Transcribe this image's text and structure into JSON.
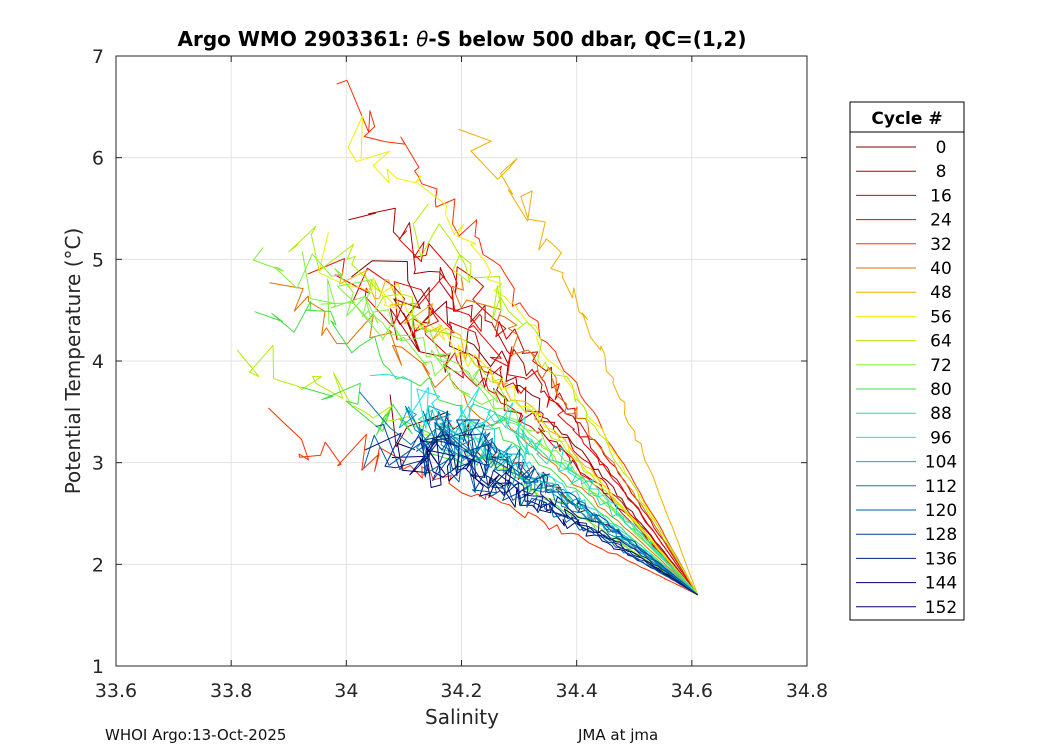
{
  "chart_data": {
    "type": "line",
    "title_prefix": "Argo WMO 2903361: ",
    "title_theta": "θ",
    "title_suffix": "-S below 500 dbar,  QC=(1,2)",
    "xlabel": "Salinity",
    "ylabel": "Potential Temperature (°C)",
    "xlim": [
      33.6,
      34.8
    ],
    "ylim": [
      1,
      7
    ],
    "xticks": [
      33.6,
      33.8,
      34.0,
      34.2,
      34.4,
      34.6,
      34.8
    ],
    "xtick_labels": [
      "33.6",
      "33.8",
      "34",
      "34.2",
      "34.4",
      "34.6",
      "34.8"
    ],
    "yticks": [
      1,
      2,
      3,
      4,
      5,
      6,
      7
    ],
    "ytick_labels": [
      "1",
      "2",
      "3",
      "4",
      "5",
      "6",
      "7"
    ],
    "grid": true,
    "legend": {
      "title": "Cycle #",
      "location": "outside-right",
      "entries": [
        {
          "label": "0",
          "color": "#800000"
        },
        {
          "label": "8",
          "color": "#b00000"
        },
        {
          "label": "16",
          "color": "#d80000"
        },
        {
          "label": "24",
          "color": "#f00000"
        },
        {
          "label": "32",
          "color": "#ff3000"
        },
        {
          "label": "40",
          "color": "#e07000"
        },
        {
          "label": "48",
          "color": "#f0b000"
        },
        {
          "label": "56",
          "color": "#f0f000"
        },
        {
          "label": "64",
          "color": "#b0f000"
        },
        {
          "label": "72",
          "color": "#80f040"
        },
        {
          "label": "80",
          "color": "#40e040"
        },
        {
          "label": "88",
          "color": "#20e0a0"
        },
        {
          "label": "96",
          "color": "#20e0e0"
        },
        {
          "label": "104",
          "color": "#00b0d0"
        },
        {
          "label": "112",
          "color": "#0080b0"
        },
        {
          "label": "120",
          "color": "#0060a0"
        },
        {
          "label": "128",
          "color": "#0040a0"
        },
        {
          "label": "136",
          "color": "#002080"
        },
        {
          "label": "144",
          "color": "#000070"
        },
        {
          "label": "152",
          "color": "#000060"
        }
      ]
    },
    "series_model": {
      "description": "theta-S profiles converging to a common deep point",
      "deep_end": {
        "S": 34.61,
        "T": 1.7
      },
      "color_groups": [
        {
          "name": "cycles 0-24",
          "colors": [
            "#800000",
            "#b00000",
            "#d80000",
            "#f00000"
          ],
          "shallow_T_range": [
            3.3,
            5.6
          ],
          "shallow_S_range": [
            33.93,
            34.22
          ],
          "count": 8
        },
        {
          "name": "cycles 32-56",
          "colors": [
            "#ff3000",
            "#e07000",
            "#f0b000",
            "#f0f000"
          ],
          "shallow_T_range": [
            3.3,
            6.8
          ],
          "shallow_S_range": [
            33.85,
            34.25
          ],
          "count": 8
        },
        {
          "name": "cycles 64-80",
          "colors": [
            "#b0f000",
            "#80f040",
            "#40e040"
          ],
          "shallow_T_range": [
            3.4,
            5.3
          ],
          "shallow_S_range": [
            33.78,
            34.15
          ],
          "count": 8
        },
        {
          "name": "cycles 88-104",
          "colors": [
            "#20e0a0",
            "#20e0e0",
            "#00b0d0"
          ],
          "shallow_T_range": [
            3.3,
            3.7
          ],
          "shallow_S_range": [
            34.05,
            34.2
          ],
          "count": 6
        },
        {
          "name": "cycles 112-152",
          "colors": [
            "#0080b0",
            "#0060a0",
            "#0040a0",
            "#002080",
            "#000070",
            "#000060"
          ],
          "shallow_T_range": [
            3.0,
            3.5
          ],
          "shallow_S_range": [
            34.05,
            34.15
          ],
          "count": 10
        }
      ]
    }
  },
  "footer": {
    "left": "WHOI Argo:13-Oct-2025",
    "right": "JMA at jma"
  }
}
